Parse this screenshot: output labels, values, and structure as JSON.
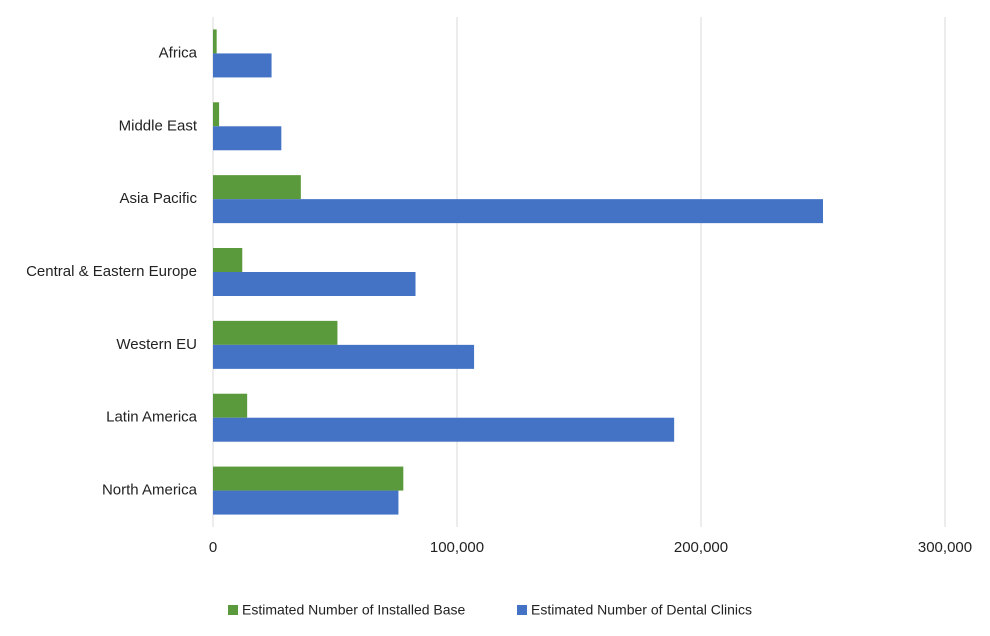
{
  "chart_data": {
    "type": "hbar",
    "categories": [
      "Africa",
      "Middle East",
      "Asia Pacific",
      "Central & Eastern Europe",
      "Western EU",
      "Latin America",
      "North America"
    ],
    "series": [
      {
        "name": "Estimated Number of Installed Base",
        "color": "#5b9a3c",
        "values": [
          1500,
          2500,
          36000,
          12000,
          51000,
          14000,
          78000
        ]
      },
      {
        "name": "Estimated Number of Dental Clinics",
        "color": "#4472c4",
        "values": [
          24000,
          28000,
          250000,
          83000,
          107000,
          189000,
          76000
        ]
      }
    ],
    "xlim": [
      0,
      300000
    ],
    "xticks": [
      0,
      {
        "value": 100000,
        "label": "100,000"
      },
      {
        "value": 200000,
        "label": "200,000"
      },
      {
        "value": 300000,
        "label": "300,000"
      }
    ],
    "grid": true,
    "legend": "bottom"
  }
}
